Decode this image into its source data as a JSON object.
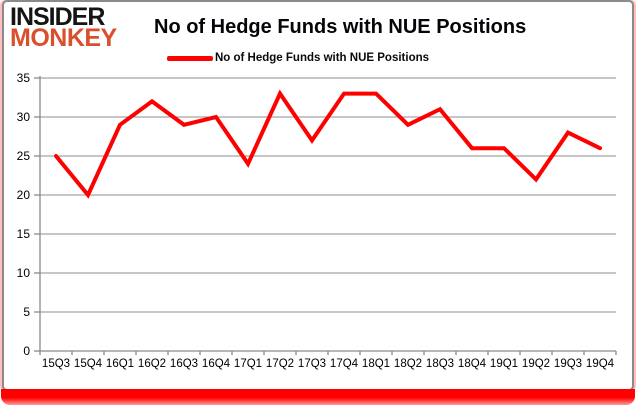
{
  "brand": {
    "line1": "INSIDER",
    "line2": "MONKEY"
  },
  "header": {
    "title": "No of Hedge Funds with NUE Positions"
  },
  "legend": {
    "label": "No of Hedge Funds with NUE Positions"
  },
  "colors": {
    "series": "#ff0000",
    "gridline": "#8e8e8e",
    "axis": "#8a8a8a",
    "tick_text": "#000000",
    "brand_black": "#141414",
    "brand_red": "#d8502e",
    "bottom_bar": "#ff0000",
    "side_glow": "#ffbdbd",
    "card_border": "#8a8a8a"
  },
  "chart_data": {
    "type": "line",
    "title": "No of Hedge Funds with NUE Positions",
    "series_name": "No of Hedge Funds with NUE Positions",
    "categories": [
      "15Q3",
      "15Q4",
      "16Q1",
      "16Q2",
      "16Q3",
      "16Q4",
      "17Q1",
      "17Q2",
      "17Q3",
      "17Q4",
      "18Q1",
      "18Q2",
      "18Q3",
      "18Q4",
      "19Q1",
      "19Q2",
      "19Q3",
      "19Q4"
    ],
    "values": [
      25,
      20,
      29,
      32,
      29,
      30,
      24,
      33,
      27,
      33,
      33,
      29,
      31,
      26,
      26,
      22,
      28,
      26
    ],
    "xlabel": "",
    "ylabel": "",
    "ylim": [
      0,
      35
    ],
    "ytick_step": 5,
    "grid": true,
    "legend_position": "top-center",
    "line_width": 4
  }
}
